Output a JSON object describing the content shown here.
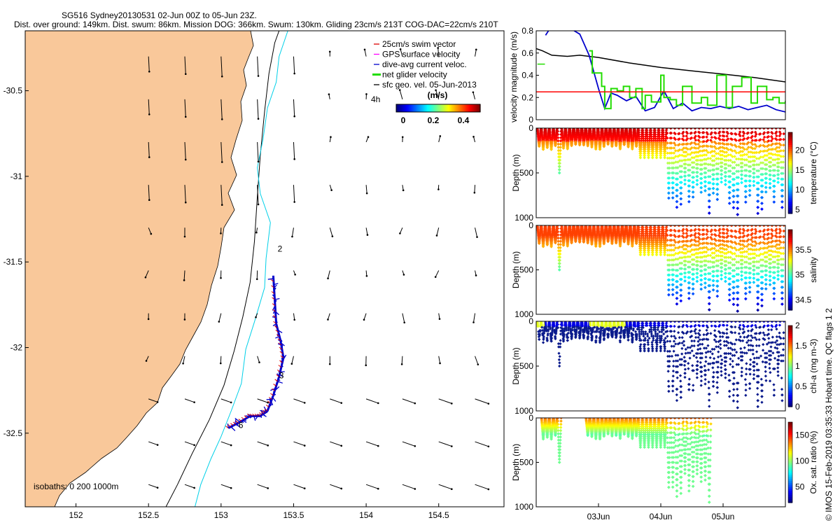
{
  "title": {
    "line1": "SG516 Sydney20130531 02-Jun 00Z to 05-Jun 23Z.",
    "line2": "Dist. over ground: 149km. Dist. swum: 86km. Mission DOG: 366km. Swum: 130km. Gliding 23cm/s 213T COG-DAC=22cm/s 210T"
  },
  "side_caption": "© IMOS 15-Feb-2019 03:35:33 Hobart time. QC flags 1  2",
  "colors": {
    "land": "#f9c89a",
    "track_swim": "#dd0000",
    "track_dac": "#0000cc",
    "isobath_200": "#00d0e8",
    "isobath_1000": "#000000",
    "net_velocity": "#22dd00",
    "red_line": "#ff0000"
  },
  "chart_data": [
    {
      "type": "scatter",
      "name": "map",
      "xlim": [
        151.65,
        154.95
      ],
      "ylim": [
        -32.93,
        -30.15
      ],
      "xticks": [
        152,
        152.5,
        153,
        153.5,
        154,
        154.5
      ],
      "xtick_labels": [
        "152",
        "152.5",
        "153",
        "153.5",
        "154",
        "154.5"
      ],
      "yticks": [
        -30.5,
        -31,
        -31.5,
        -32,
        -32.5
      ],
      "ytick_labels": [
        "-30.5",
        "-31",
        "-31.5",
        "-32",
        "-32.5"
      ],
      "legend": {
        "placement": "top-right",
        "items": [
          {
            "label": "25cm/s swim vector",
            "color": "#dd0000"
          },
          {
            "label": "GPS surface velocity",
            "color": "#ff00ff"
          },
          {
            "label": "dive-avg current veloc.",
            "color": "#0000cc"
          },
          {
            "label": "net glider velocity",
            "color": "#22dd00"
          },
          {
            "label": "sfc geo. vel. 05-Jun-2013",
            "color": "#000000"
          }
        ],
        "scale_label": "4h",
        "colorbar_title": "(m/s)",
        "colorbar_ticks": [
          "0",
          "0.2",
          "0.4"
        ]
      },
      "isobaths_label": "isobaths: 0   200   1000m",
      "track_labels": [
        {
          "text": "2",
          "lon": 153.39,
          "lat": -31.44
        },
        {
          "text": "3",
          "lon": 153.4,
          "lat": -32.18
        },
        {
          "text": "6",
          "lon": 153.12,
          "lat": -32.47
        }
      ],
      "track": [
        [
          153.05,
          -32.47
        ],
        [
          153.12,
          -32.44
        ],
        [
          153.2,
          -32.4
        ],
        [
          153.27,
          -32.4
        ],
        [
          153.32,
          -32.37
        ],
        [
          153.36,
          -32.28
        ],
        [
          153.4,
          -32.17
        ],
        [
          153.43,
          -32.06
        ],
        [
          153.41,
          -31.96
        ],
        [
          153.38,
          -31.86
        ],
        [
          153.37,
          -31.72
        ],
        [
          153.36,
          -31.58
        ]
      ],
      "isobath_200": [
        [
          152.82,
          -32.93
        ],
        [
          152.86,
          -32.8
        ],
        [
          152.93,
          -32.65
        ],
        [
          153.0,
          -32.52
        ],
        [
          153.07,
          -32.37
        ],
        [
          153.14,
          -32.21
        ],
        [
          153.17,
          -32.01
        ],
        [
          153.23,
          -31.85
        ],
        [
          153.3,
          -31.65
        ],
        [
          153.31,
          -31.48
        ],
        [
          153.34,
          -31.27
        ],
        [
          153.27,
          -31.1
        ],
        [
          153.25,
          -30.95
        ],
        [
          153.29,
          -30.78
        ],
        [
          153.32,
          -30.6
        ],
        [
          153.38,
          -30.45
        ],
        [
          153.4,
          -30.3
        ],
        [
          153.46,
          -30.15
        ]
      ],
      "isobath_1000": [
        [
          152.62,
          -32.93
        ],
        [
          152.7,
          -32.8
        ],
        [
          152.8,
          -32.62
        ],
        [
          152.92,
          -32.42
        ],
        [
          153.02,
          -32.22
        ],
        [
          153.09,
          -32.02
        ],
        [
          153.15,
          -31.82
        ],
        [
          153.2,
          -31.62
        ],
        [
          153.23,
          -31.38
        ],
        [
          153.25,
          -31.12
        ],
        [
          153.27,
          -30.88
        ],
        [
          153.3,
          -30.62
        ],
        [
          153.33,
          -30.4
        ],
        [
          153.37,
          -30.22
        ],
        [
          153.4,
          -30.15
        ]
      ]
    },
    {
      "type": "line",
      "name": "velocity",
      "ylabel": "velocity magnitude (m/s)",
      "ylim": [
        0,
        0.8
      ],
      "yticks": [
        0,
        0.2,
        0.4,
        0.6,
        0.8
      ],
      "ytick_labels": [
        "0",
        "0.2",
        "0.4",
        "0.6",
        "0.8"
      ],
      "xlim": [
        0,
        4
      ],
      "series": [
        {
          "color": "#000000",
          "x": [
            0,
            0.1,
            0.25,
            0.5,
            0.7,
            1,
            1.5,
            2,
            2.5,
            3,
            3.5,
            4
          ],
          "y": [
            0.64,
            0.62,
            0.58,
            0.57,
            0.58,
            0.56,
            0.51,
            0.47,
            0.44,
            0.41,
            0.38,
            0.34
          ]
        },
        {
          "color": "#0000cc",
          "x": [
            0.15,
            0.22,
            0.38,
            0.55,
            0.7,
            0.85,
            1,
            1.1,
            1.2,
            1.3,
            1.45,
            1.6,
            1.75,
            1.9,
            2.05,
            2.2,
            2.35,
            2.5,
            2.65,
            2.8,
            2.95,
            3.1,
            3.25,
            3.4,
            3.55,
            3.7,
            3.85,
            4
          ],
          "y": [
            0.76,
            0.82,
            0.84,
            0.82,
            0.77,
            0.58,
            0.28,
            0.1,
            0.24,
            0.22,
            0.17,
            0.21,
            0.08,
            0.11,
            0.26,
            0.1,
            0.15,
            0.08,
            0.11,
            0.1,
            0.12,
            0.1,
            0.12,
            0.09,
            0.11,
            0.13,
            0.09,
            0.07
          ]
        },
        {
          "color": "#22dd00",
          "x": [
            0.85,
            0.9,
            1.05,
            1.1,
            1.2,
            1.3,
            1.4,
            1.5,
            1.6,
            1.7,
            1.75,
            1.85,
            2,
            2.05,
            2.15,
            2.25,
            2.35,
            2.5,
            2.65,
            2.75,
            2.9,
            3.05,
            3.15,
            3.3,
            3.45,
            3.55,
            3.7,
            3.8,
            3.9,
            4
          ],
          "y": [
            0.62,
            0.42,
            0.3,
            0.1,
            0.28,
            0.26,
            0.3,
            0.2,
            0.28,
            0.1,
            0.22,
            0.16,
            0.4,
            0.2,
            0.18,
            0.13,
            0.3,
            0.15,
            0.2,
            0.13,
            0.4,
            0.11,
            0.3,
            0.38,
            0.15,
            0.3,
            0.18,
            0.2,
            0.15,
            0.17
          ]
        },
        {
          "color": "#ff0000",
          "x": [
            0,
            4
          ],
          "y": [
            0.25,
            0.25
          ]
        },
        {
          "color": "#22dd00",
          "x": [
            0.02,
            0.14
          ],
          "y": [
            0.5,
            0.5
          ]
        }
      ]
    },
    {
      "type": "scatter",
      "name": "temperature",
      "ylabel": "Depth (m)",
      "colorbar_label": "temperature (°C)",
      "color_range": [
        4,
        24.5
      ],
      "colorbar_ticks": [
        5,
        10,
        15,
        20
      ],
      "ylim": [
        1000,
        0
      ],
      "yticks": [
        0,
        500,
        1000
      ],
      "ytick_labels": [
        "0",
        "500",
        "1000"
      ]
    },
    {
      "type": "scatter",
      "name": "salinity",
      "ylabel": "Depth (m)",
      "colorbar_label": "salinity",
      "color_range": [
        34.3,
        35.9
      ],
      "colorbar_ticks": [
        34.5,
        35,
        35.5
      ],
      "ylim": [
        1000,
        0
      ],
      "yticks": [
        0,
        500,
        1000
      ],
      "ytick_labels": [
        "0",
        "500",
        "1000"
      ]
    },
    {
      "type": "scatter",
      "name": "chla",
      "ylabel": "Depth (m)",
      "colorbar_label": "chl-a (mg m-3)",
      "color_range": [
        0,
        2
      ],
      "colorbar_ticks": [
        0,
        0.5,
        1,
        1.5,
        2
      ],
      "ylim": [
        1000,
        0
      ],
      "yticks": [
        0,
        500,
        1000
      ],
      "ytick_labels": [
        "0",
        "500",
        "1000"
      ]
    },
    {
      "type": "scatter",
      "name": "oxygen",
      "ylabel": "Depth (m)",
      "colorbar_label": "Ox. sat. ratio (%)",
      "color_range": [
        20,
        175
      ],
      "colorbar_ticks": [
        50,
        100,
        150
      ],
      "ylim": [
        1000,
        0
      ],
      "yticks": [
        0,
        500,
        1000
      ],
      "ytick_labels": [
        "0",
        "500",
        "1000"
      ]
    }
  ],
  "time_axis": {
    "xlim": [
      0,
      4
    ],
    "ticks": [
      1,
      2,
      3
    ],
    "tick_labels": [
      "03Jun",
      "04Jun",
      "05Jun"
    ]
  }
}
